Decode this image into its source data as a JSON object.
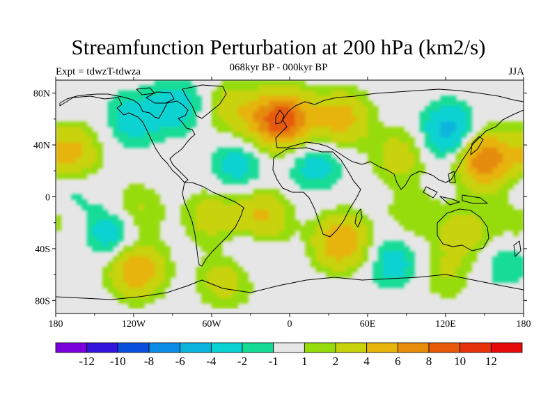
{
  "title": "Streamfunction Perturbation at 200 hPa (km2/s)",
  "subtitle": "068kyr BP - 000kyr BP",
  "left_string": "Expt = tdwzT-tdwza",
  "right_string": "JJA",
  "colors": {
    "background": "#e6e6e6",
    "levels": [
      "#7a00dc",
      "#3214dc",
      "#0a50dc",
      "#0a8ce6",
      "#0ab4dc",
      "#0ad2d2",
      "#14dc96",
      "#e6e6e6",
      "#96dc0a",
      "#c8d20a",
      "#e6b40a",
      "#e68c0a",
      "#e65a0a",
      "#e6320a",
      "#e60a0a"
    ]
  },
  "chart_data": {
    "type": "heatmap",
    "title": "Streamfunction Perturbation at 200 hPa (km2/s)",
    "subtitle": "068kyr BP - 000kyr BP",
    "x_ticks": [
      "180",
      "120W",
      "60W",
      "0",
      "60E",
      "120E",
      "180"
    ],
    "x_tick_values": [
      -180,
      -120,
      -60,
      0,
      60,
      120,
      180
    ],
    "y_ticks": [
      "80N",
      "40N",
      "0",
      "40S",
      "80S"
    ],
    "y_tick_values": [
      80,
      40,
      0,
      -40,
      -80
    ],
    "xlim": [
      -180,
      180
    ],
    "ylim": [
      -90,
      90
    ],
    "colorbar_labels": [
      "-12",
      "-10",
      "-8",
      "-6",
      "-4",
      "-2",
      "-1",
      "1",
      "2",
      "4",
      "6",
      "8",
      "10",
      "12"
    ],
    "colorbar_levels": [
      -12,
      -10,
      -8,
      -6,
      -4,
      -2,
      -1,
      1,
      2,
      4,
      6,
      8,
      10,
      12
    ],
    "colorbar_bins": 15,
    "anomalies": [
      {
        "lon": 0,
        "lat": 60,
        "value": 6
      },
      {
        "lon": 40,
        "lat": 60,
        "value": 5
      },
      {
        "lon": -15,
        "lat": 58,
        "value": 5
      },
      {
        "lon": 150,
        "lat": 29,
        "value": 8
      },
      {
        "lon": 85,
        "lat": 32,
        "value": 3
      },
      {
        "lon": -168,
        "lat": 33,
        "value": 5
      },
      {
        "lon": -45,
        "lat": 68,
        "value": 3
      },
      {
        "lon": 123,
        "lat": 50,
        "value": -5
      },
      {
        "lon": -120,
        "lat": 60,
        "value": -3
      },
      {
        "lon": -85,
        "lat": 70,
        "value": -3
      },
      {
        "lon": -40,
        "lat": 25,
        "value": -3
      },
      {
        "lon": 20,
        "lat": 25,
        "value": -3
      },
      {
        "lon": -170,
        "lat": 5,
        "value": -2
      },
      {
        "lon": -120,
        "lat": -12,
        "value": 3
      },
      {
        "lon": -60,
        "lat": -15,
        "value": 3
      },
      {
        "lon": -22,
        "lat": -17,
        "value": 5
      },
      {
        "lon": 40,
        "lat": -35,
        "value": 6
      },
      {
        "lon": 135,
        "lat": -28,
        "value": 3
      },
      {
        "lon": 95,
        "lat": -15,
        "value": 2
      },
      {
        "lon": -135,
        "lat": -27,
        "value": -4
      },
      {
        "lon": -30,
        "lat": -35,
        "value": -2
      },
      {
        "lon": 80,
        "lat": -50,
        "value": -3
      },
      {
        "lon": 165,
        "lat": -50,
        "value": -2
      },
      {
        "lon": -118,
        "lat": -56,
        "value": 6
      },
      {
        "lon": -50,
        "lat": -65,
        "value": 3
      },
      {
        "lon": 120,
        "lat": -60,
        "value": 2
      },
      {
        "lon": 175,
        "lat": -18,
        "value": 2
      }
    ]
  }
}
